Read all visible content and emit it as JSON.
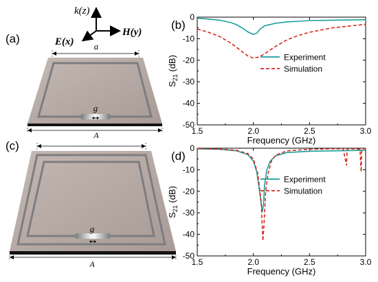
{
  "panels": {
    "a": {
      "label": "(a)",
      "dim_inner": "a",
      "dim_outer": "A",
      "dim_gap": "g"
    },
    "c": {
      "label": "(c)",
      "dim_inner": "a",
      "dim_outer": "A",
      "dim_gap": "g"
    }
  },
  "axes_labels": {
    "k": "k(z)",
    "E": "E(x)",
    "H": "H(y)"
  },
  "colors": {
    "experiment": "#1a9e9a",
    "simulation": "#d42a1e",
    "substrate": "#b9aca6",
    "ring": "#7d7d80"
  },
  "chart_data": [
    {
      "panel": "(b)",
      "type": "line",
      "xlabel": "Frequency (GHz)",
      "ylabel": "S21 (dB)",
      "ylabel_main": "S",
      "ylabel_sub": "21",
      "ylabel_unit": " (dB)",
      "xlim": [
        1.5,
        3.0
      ],
      "ylim": [
        -50,
        0
      ],
      "xticks": [
        "1.5",
        "2.0",
        "2.5",
        "3.0"
      ],
      "yticks": [
        "0",
        "-10",
        "-20",
        "-30",
        "-40",
        "-50"
      ],
      "legend": "right",
      "series": [
        {
          "name": "Experiment",
          "style": "solid",
          "color": "#1a9e9a",
          "x": [
            1.5,
            1.6,
            1.7,
            1.8,
            1.85,
            1.9,
            1.95,
            2.0,
            2.03,
            2.06,
            2.1,
            2.2,
            2.3,
            2.4,
            2.5,
            2.7,
            3.0
          ],
          "y": [
            -0.5,
            -0.9,
            -1.4,
            -2.5,
            -3.5,
            -5.0,
            -6.8,
            -8.0,
            -7.5,
            -5.5,
            -4.0,
            -2.8,
            -2.2,
            -1.9,
            -1.6,
            -1.4,
            -1.2
          ]
        },
        {
          "name": "Simulation",
          "style": "dashed",
          "color": "#d42a1e",
          "x": [
            1.5,
            1.6,
            1.7,
            1.8,
            1.9,
            1.95,
            2.0,
            2.05,
            2.1,
            2.2,
            2.3,
            2.4,
            2.5,
            2.7,
            3.0
          ],
          "y": [
            -5.5,
            -7.0,
            -9.0,
            -12.0,
            -16.0,
            -18.0,
            -19.0,
            -18.5,
            -17.0,
            -13.5,
            -10.5,
            -8.5,
            -7.0,
            -5.0,
            -3.3
          ]
        }
      ]
    },
    {
      "panel": "(d)",
      "type": "line",
      "xlabel": "Frequency (GHz)",
      "ylabel": "S21 (dB)",
      "ylabel_main": "S",
      "ylabel_sub": "21",
      "ylabel_unit": " (dB)",
      "xlim": [
        1.5,
        3.0
      ],
      "ylim": [
        -50,
        0
      ],
      "xticks": [
        "1.5",
        "2.0",
        "2.5",
        "3.0"
      ],
      "yticks": [
        "0",
        "-10",
        "-20",
        "-30",
        "-40",
        "-50"
      ],
      "legend": "right",
      "series": [
        {
          "name": "Experiment",
          "style": "solid",
          "color": "#1a9e9a",
          "x": [
            1.5,
            1.7,
            1.85,
            1.95,
            2.0,
            2.03,
            2.05,
            2.07,
            2.08,
            2.09,
            2.1,
            2.12,
            2.15,
            2.2,
            2.3,
            2.5,
            3.0
          ],
          "y": [
            -0.3,
            -0.5,
            -1.2,
            -3.0,
            -6.0,
            -11.0,
            -18.0,
            -26.0,
            -29.5,
            -26.0,
            -17.0,
            -10.0,
            -6.0,
            -3.5,
            -2.0,
            -1.4,
            -1.0
          ]
        },
        {
          "name": "Simulation",
          "style": "dashed",
          "color": "#d42a1e",
          "x": [
            1.5,
            1.7,
            1.85,
            1.95,
            2.0,
            2.04,
            2.07,
            2.085,
            2.095,
            2.11,
            2.13,
            2.16,
            2.2,
            2.3,
            2.5,
            2.7,
            2.8,
            2.83,
            2.835,
            2.84,
            2.9,
            2.95,
            2.96,
            2.965,
            2.97,
            3.0
          ],
          "y": [
            -0.2,
            -0.4,
            -1.0,
            -2.5,
            -5.0,
            -12.0,
            -25.0,
            -43.0,
            -35.0,
            -20.0,
            -12.0,
            -6.0,
            -3.2,
            -1.2,
            -0.5,
            -0.3,
            -0.3,
            -8.0,
            -0.5,
            -0.3,
            -0.3,
            -0.5,
            -11.0,
            -0.5,
            -0.3,
            -0.2
          ]
        }
      ]
    }
  ]
}
